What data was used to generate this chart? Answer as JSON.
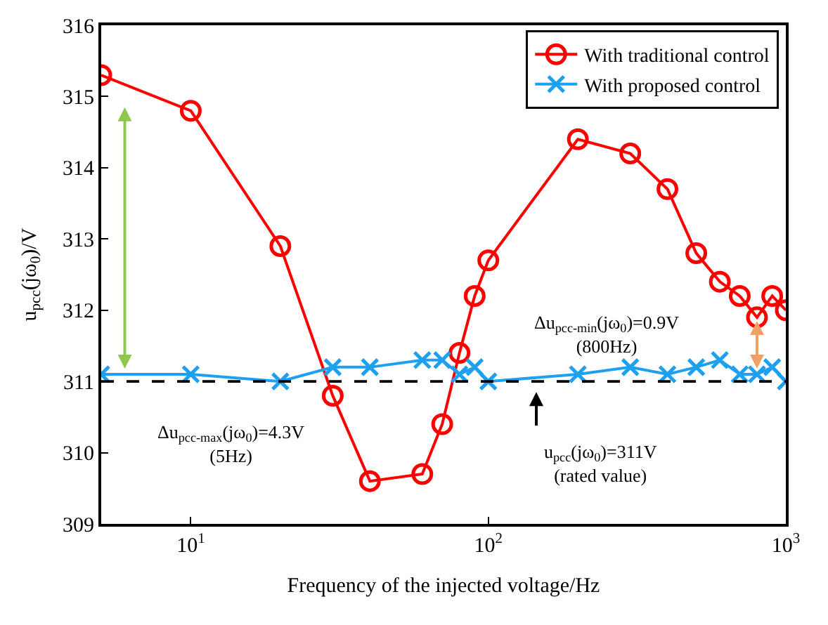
{
  "chart_data": {
    "type": "line",
    "xlabel": "Frequency of the injected voltage/Hz",
    "ylabel": "u$_{pcc}$(jω$_{0}$)/V",
    "x": [
      5,
      10,
      20,
      30,
      40,
      60,
      70,
      80,
      90,
      100,
      200,
      300,
      400,
      500,
      600,
      700,
      800,
      900,
      1000
    ],
    "series": [
      {
        "name": "With traditional control",
        "color": "#ff0000",
        "marker": "circle",
        "values": [
          315.3,
          314.8,
          312.9,
          310.8,
          309.6,
          309.7,
          310.4,
          311.4,
          312.2,
          312.7,
          314.4,
          314.2,
          313.7,
          312.8,
          312.4,
          312.2,
          311.9,
          312.2,
          312.0
        ]
      },
      {
        "name": "With proposed control",
        "color": "#1ea0f0",
        "marker": "cross",
        "values": [
          311.1,
          311.1,
          311.0,
          311.2,
          311.2,
          311.3,
          311.3,
          311.1,
          311.2,
          311.0,
          311.1,
          311.2,
          311.1,
          311.2,
          311.3,
          311.1,
          311.1,
          311.2,
          311.0
        ]
      }
    ],
    "log": "x",
    "xlim": [
      5,
      1000
    ],
    "xticks": [
      {
        "value": 10,
        "label": "10$^{1}$"
      },
      {
        "value": 100,
        "label": "10$^{2}$"
      },
      {
        "value": 1000,
        "label": "10$^{3}$"
      }
    ],
    "ylim": [
      309,
      316
    ],
    "yticks": [
      309,
      310,
      311,
      312,
      313,
      314,
      315,
      316
    ],
    "ref_lines": [
      {
        "axis": "y",
        "value": 311,
        "color": "#000000",
        "line_style": "dashed"
      }
    ],
    "annotations": [
      "Δu$_{pcc-max}$(jω$_{0}$)=4.3V\n(5Hz)",
      "Δu$_{pcc-min}$(jω$_{0}$)=0.9V\n(800Hz)",
      "u$_{pcc}$(jω$_{0}$)=311V\n(rated value)"
    ],
    "legend": "top right",
    "line_style": "solid"
  }
}
